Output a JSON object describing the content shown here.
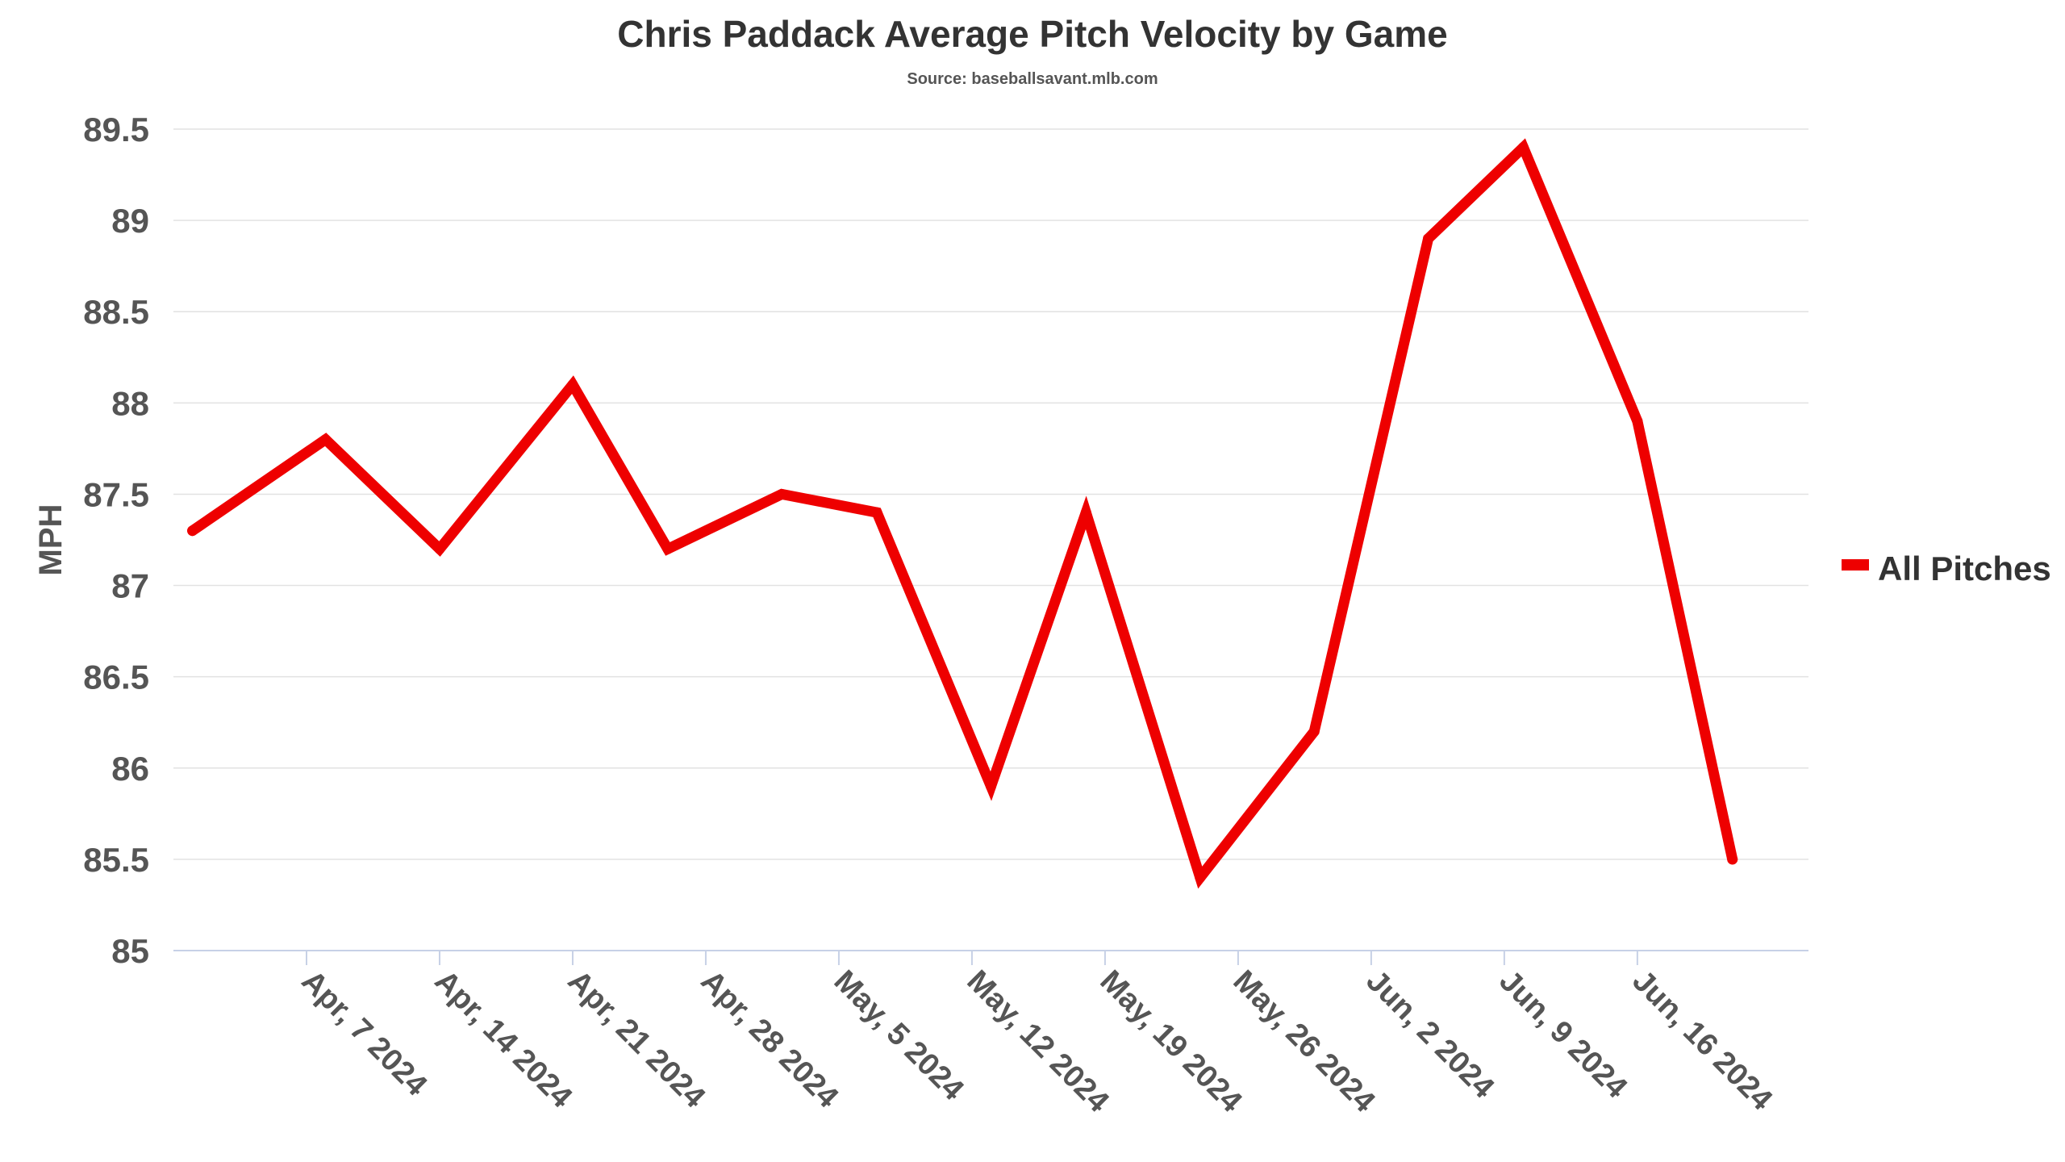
{
  "chart_data": {
    "type": "line",
    "title": "Chris Paddack Average Pitch Velocity by Game",
    "subtitle": "Source: baseballsavant.mlb.com",
    "xlabel": "",
    "ylabel": "MPH",
    "ylim": [
      85,
      89.5
    ],
    "yticks": [
      85,
      85.5,
      86,
      86.5,
      87,
      87.5,
      88,
      88.5,
      89,
      89.5
    ],
    "ytick_labels": [
      "85",
      "85.5",
      "86",
      "86.5",
      "87",
      "87.5",
      "88",
      "88.5",
      "89",
      "89.5"
    ],
    "xlim": [
      "2024-03-31",
      "2024-06-25"
    ],
    "xticks": [
      "2024-04-07",
      "2024-04-14",
      "2024-04-21",
      "2024-04-28",
      "2024-05-05",
      "2024-05-12",
      "2024-05-19",
      "2024-05-26",
      "2024-06-02",
      "2024-06-09",
      "2024-06-16"
    ],
    "xtick_labels": [
      "Apr, 7 2024",
      "Apr, 14 2024",
      "Apr, 21 2024",
      "Apr, 28 2024",
      "May, 5 2024",
      "May, 12 2024",
      "May, 19 2024",
      "May, 26 2024",
      "Jun, 2 2024",
      "Jun, 9 2024",
      "Jun, 16 2024"
    ],
    "grid": true,
    "legend_position": "right",
    "series": [
      {
        "name": "All Pitches",
        "color": "#ee0000",
        "x": [
          "2024-04-01",
          "2024-04-08",
          "2024-04-14",
          "2024-04-21",
          "2024-04-26",
          "2024-05-02",
          "2024-05-07",
          "2024-05-13",
          "2024-05-18",
          "2024-05-24",
          "2024-05-30",
          "2024-06-05",
          "2024-06-10",
          "2024-06-16",
          "2024-06-21"
        ],
        "values": [
          87.3,
          87.8,
          87.2,
          88.1,
          87.2,
          87.5,
          87.4,
          85.9,
          87.4,
          85.4,
          86.2,
          88.9,
          89.4,
          87.9,
          85.5
        ]
      }
    ]
  }
}
